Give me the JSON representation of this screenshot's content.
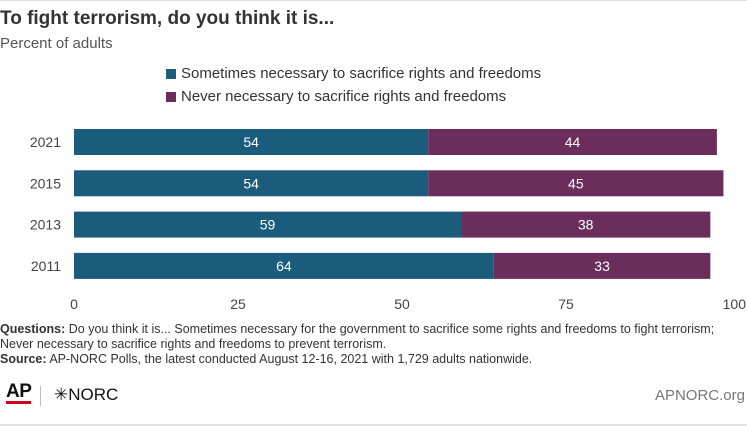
{
  "header": {
    "title": "To fight terrorism, do you think it is...",
    "subtitle": "Percent of adults"
  },
  "legend": [
    {
      "label": "Sometimes necessary to sacrifice rights and freedoms",
      "color": "#1b5c7d"
    },
    {
      "label": "Never necessary to sacrifice rights and freedoms",
      "color": "#6b2d5c"
    }
  ],
  "chart_data": {
    "type": "bar",
    "orientation": "horizontal",
    "stacked": true,
    "title": "To fight terrorism, do you think it is...",
    "subtitle": "Percent of adults",
    "categories": [
      "2021",
      "2015",
      "2013",
      "2011"
    ],
    "series": [
      {
        "name": "Sometimes necessary to sacrifice rights and freedoms",
        "values": [
          54,
          54,
          59,
          64
        ],
        "color": "#1b5c7d"
      },
      {
        "name": "Never necessary to sacrifice rights and freedoms",
        "values": [
          44,
          45,
          38,
          33
        ],
        "color": "#6b2d5c"
      }
    ],
    "xlim": [
      0,
      100
    ],
    "xticks": [
      "0",
      "25",
      "50",
      "75",
      "100"
    ],
    "grid": false,
    "legend_position": "top"
  },
  "notes": {
    "questions_label": "Questions:",
    "questions_text": " Do you think it is... Sometimes necessary for the government to sacrifice some rights and freedoms to fight terrorism; Never necessary to sacrifice rights and freedoms to prevent terrorism.",
    "source_label": "Source:",
    "source_text": " AP-NORC Polls, the latest conducted August 12-16, 2021 with 1,729 adults nationwide."
  },
  "footer": {
    "ap_logo": "AP",
    "norc_logo": "✳NORC",
    "site": "APNORC.org"
  }
}
